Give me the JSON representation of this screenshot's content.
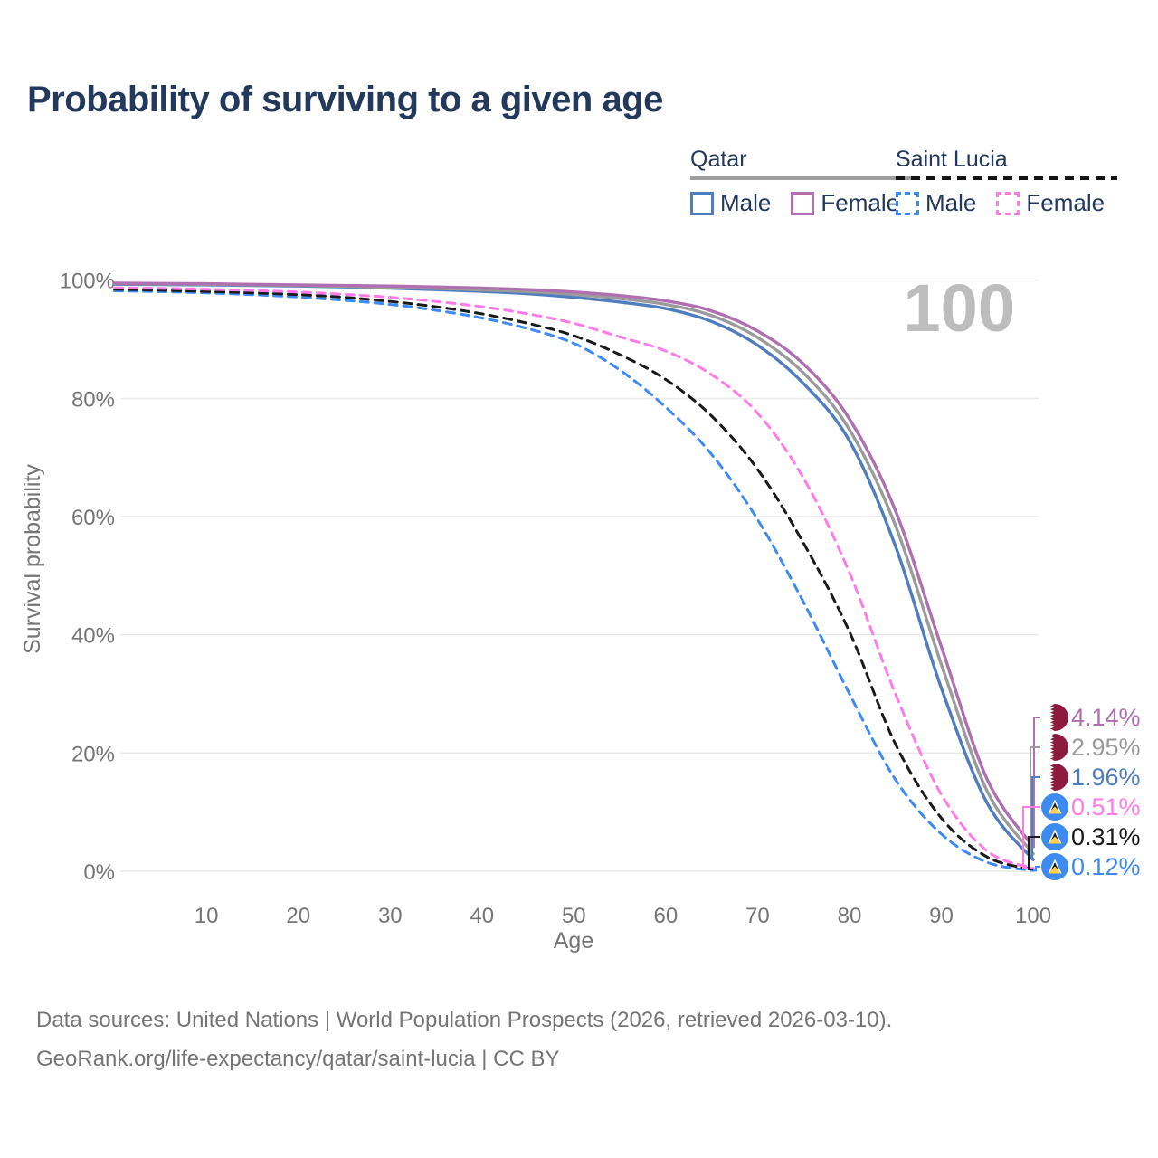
{
  "title": "Probability of surviving to a given age",
  "watermark_age": "100",
  "axes": {
    "y_title": "Survival probability",
    "x_title": "Age",
    "y_ticks": [
      "0%",
      "20%",
      "40%",
      "60%",
      "80%",
      "100%"
    ],
    "y_tick_values": [
      0,
      20,
      40,
      60,
      80,
      100
    ],
    "x_ticks": [
      10,
      20,
      30,
      40,
      50,
      60,
      70,
      80,
      90,
      100
    ],
    "grid": true,
    "grid_color": "#e9e9e9",
    "tick_color": "#757575"
  },
  "legend": {
    "groups": [
      {
        "label": "Qatar",
        "line_style": "solid",
        "underline_color": "#9e9e9e",
        "items": [
          {
            "label": "Male",
            "color": "#4f7dbf",
            "dashed": false
          },
          {
            "label": "Female",
            "color": "#b06fb0",
            "dashed": false
          }
        ]
      },
      {
        "label": "Saint Lucia",
        "line_style": "dashed",
        "underline_color": "#141414",
        "items": [
          {
            "label": "Male",
            "color": "#3d8af5",
            "dashed": true
          },
          {
            "label": "Female",
            "color": "#ff7be8",
            "dashed": true
          }
        ]
      }
    ]
  },
  "chart_data": {
    "type": "line",
    "title": "Probability of surviving to a given age",
    "xlabel": "Age",
    "ylabel": "Survival probability",
    "xlim": [
      0,
      100
    ],
    "ylim_percent": [
      0,
      100
    ],
    "grid": "horizontal",
    "x": [
      0,
      5,
      10,
      15,
      20,
      25,
      30,
      35,
      40,
      45,
      50,
      55,
      60,
      65,
      70,
      75,
      80,
      85,
      90,
      95,
      100
    ],
    "series": [
      {
        "name": "Qatar Female",
        "country": "Qatar",
        "sex": "Female",
        "color": "#b06fb0",
        "dashed": false,
        "flag": "qatar",
        "end_label": "4.14%",
        "values": [
          99.5,
          99.45,
          99.4,
          99.3,
          99.2,
          99.1,
          99.0,
          98.85,
          98.65,
          98.4,
          98.0,
          97.4,
          96.5,
          94.8,
          91.4,
          85.8,
          76.5,
          61.0,
          38.0,
          15.5,
          4.14
        ]
      },
      {
        "name": "Qatar Both sexes",
        "country": "Qatar",
        "sex": "Both",
        "color": "#9b9b9b",
        "dashed": false,
        "flag": "qatar",
        "end_label": "2.95%",
        "values": [
          99.4,
          99.35,
          99.3,
          99.2,
          99.1,
          98.95,
          98.8,
          98.6,
          98.35,
          98.05,
          97.6,
          96.9,
          95.9,
          94.0,
          90.3,
          84.3,
          74.7,
          58.5,
          35.0,
          13.5,
          2.95
        ]
      },
      {
        "name": "Qatar Male",
        "country": "Qatar",
        "sex": "Male",
        "color": "#4f7dbf",
        "dashed": false,
        "flag": "qatar",
        "end_label": "1.96%",
        "values": [
          99.3,
          99.25,
          99.2,
          99.1,
          99.0,
          98.85,
          98.65,
          98.4,
          98.1,
          97.7,
          97.1,
          96.3,
          95.2,
          93.0,
          89.0,
          82.5,
          72.8,
          55.0,
          31.0,
          11.5,
          1.96
        ]
      },
      {
        "name": "Saint Lucia Female",
        "country": "Saint Lucia",
        "sex": "Female",
        "color": "#ff7be8",
        "dashed": true,
        "flag": "saint-lucia",
        "end_label": "0.51%",
        "values": [
          98.7,
          98.6,
          98.45,
          98.25,
          98.0,
          97.6,
          97.1,
          96.4,
          95.5,
          94.3,
          92.7,
          90.4,
          88.0,
          84.0,
          77.5,
          66.5,
          50.5,
          30.0,
          13.0,
          3.4,
          0.51
        ]
      },
      {
        "name": "Saint Lucia Both sexes",
        "country": "Saint Lucia",
        "sex": "Both",
        "color": "#1a1a1a",
        "dashed": true,
        "flag": "saint-lucia",
        "end_label": "0.31%",
        "values": [
          98.45,
          98.3,
          98.1,
          97.85,
          97.55,
          97.1,
          96.4,
          95.5,
          94.3,
          92.7,
          90.6,
          87.4,
          83.2,
          77.0,
          68.0,
          55.5,
          40.5,
          21.5,
          9.0,
          2.4,
          0.31
        ]
      },
      {
        "name": "Saint Lucia Male",
        "country": "Saint Lucia",
        "sex": "Male",
        "color": "#3d8af5",
        "dashed": true,
        "flag": "saint-lucia",
        "end_label": "0.12%",
        "values": [
          98.2,
          98.05,
          97.85,
          97.55,
          97.15,
          96.6,
          95.9,
          94.9,
          93.6,
          91.8,
          89.3,
          84.8,
          78.5,
          70.5,
          59.5,
          45.5,
          30.0,
          15.5,
          6.3,
          1.5,
          0.12
        ]
      }
    ],
    "flag_colors": {
      "qatar_maroon": "#8d1b3d",
      "saint_lucia_blue": "#3b8bf0",
      "saint_lucia_gold": "#ffd24d"
    }
  },
  "footer": {
    "line1": "Data sources: United Nations | World Population Prospects (2026, retrieved 2026-03-10).",
    "line2": "GeoRank.org/life-expectancy/qatar/saint-lucia | CC BY"
  }
}
